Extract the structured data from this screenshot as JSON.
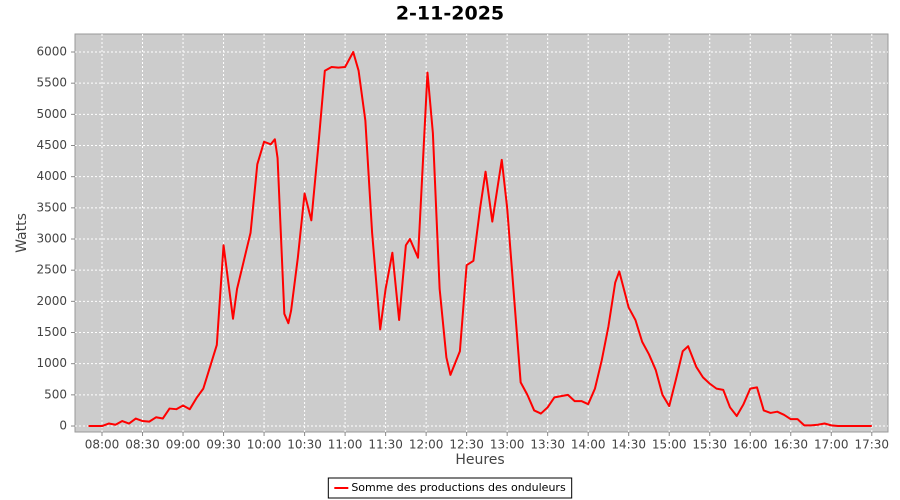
{
  "chart_data": {
    "type": "line",
    "title": "2-11-2025",
    "x_label": "Heures",
    "y_label": "Watts",
    "x": [
      "07:50",
      "07:55",
      "08:00",
      "08:05",
      "08:10",
      "08:15",
      "08:20",
      "08:25",
      "08:30",
      "08:35",
      "08:40",
      "08:45",
      "08:50",
      "08:55",
      "09:00",
      "09:05",
      "09:10",
      "09:15",
      "09:20",
      "09:25",
      "09:30",
      "09:37",
      "09:40",
      "09:45",
      "09:50",
      "09:55",
      "10:00",
      "10:05",
      "10:08",
      "10:10",
      "10:15",
      "10:18",
      "10:20",
      "10:25",
      "10:30",
      "10:35",
      "10:40",
      "10:45",
      "10:50",
      "10:55",
      "11:00",
      "11:06",
      "11:10",
      "11:15",
      "11:20",
      "11:26",
      "11:30",
      "11:35",
      "11:40",
      "11:45",
      "11:48",
      "11:54",
      "12:01",
      "12:05",
      "12:10",
      "12:15",
      "12:18",
      "12:25",
      "12:30",
      "12:35",
      "12:40",
      "12:44",
      "12:49",
      "12:56",
      "13:00",
      "13:05",
      "13:10",
      "13:15",
      "13:20",
      "13:25",
      "13:30",
      "13:35",
      "13:40",
      "13:45",
      "13:50",
      "13:55",
      "14:00",
      "14:05",
      "14:10",
      "14:15",
      "14:20",
      "14:23",
      "14:30",
      "14:35",
      "14:40",
      "14:45",
      "14:50",
      "14:55",
      "15:00",
      "15:05",
      "15:10",
      "15:14",
      "15:20",
      "15:25",
      "15:30",
      "15:35",
      "15:40",
      "15:45",
      "15:50",
      "15:55",
      "16:00",
      "16:05",
      "16:10",
      "16:15",
      "16:20",
      "16:25",
      "16:30",
      "16:35",
      "16:40",
      "16:45",
      "16:50",
      "16:55",
      "17:00",
      "17:05",
      "17:10",
      "17:15",
      "17:20",
      "17:25",
      "17:30"
    ],
    "series": [
      {
        "name": "Somme des productions des onduleurs",
        "color": "#ff0000",
        "values": [
          0,
          0,
          0,
          40,
          20,
          80,
          40,
          120,
          80,
          70,
          140,
          120,
          280,
          270,
          330,
          270,
          450,
          600,
          950,
          1300,
          2900,
          1720,
          2200,
          2650,
          3100,
          4200,
          4560,
          4520,
          4600,
          4300,
          1800,
          1650,
          1850,
          2700,
          3730,
          3300,
          4450,
          5700,
          5760,
          5750,
          5760,
          6000,
          5700,
          4900,
          3100,
          1550,
          2200,
          2780,
          1700,
          2900,
          3000,
          2700,
          5670,
          4700,
          2200,
          1100,
          820,
          1200,
          2580,
          2650,
          3500,
          4080,
          3280,
          4270,
          3500,
          2100,
          700,
          500,
          250,
          200,
          300,
          460,
          480,
          500,
          400,
          400,
          350,
          600,
          1050,
          1600,
          2300,
          2480,
          1900,
          1700,
          1350,
          1150,
          900,
          500,
          320,
          750,
          1200,
          1280,
          950,
          780,
          680,
          600,
          580,
          300,
          160,
          350,
          600,
          620,
          250,
          210,
          230,
          180,
          110,
          110,
          10,
          10,
          20,
          40,
          10,
          0,
          0,
          0,
          0,
          0,
          0
        ]
      }
    ],
    "xlim": [
      "07:40",
      "17:42"
    ],
    "ylim": [
      -96,
      6289
    ],
    "xticks": [
      "08:00",
      "08:30",
      "09:00",
      "09:30",
      "10:00",
      "10:30",
      "11:00",
      "11:30",
      "12:00",
      "12:30",
      "13:00",
      "13:30",
      "14:00",
      "14:30",
      "15:00",
      "15:30",
      "16:00",
      "16:30",
      "17:00",
      "17:30"
    ],
    "yticks": [
      0,
      500,
      1000,
      1500,
      2000,
      2500,
      3000,
      3500,
      4000,
      4500,
      5000,
      5500,
      6000
    ],
    "grid": true,
    "legend": "bottom"
  }
}
